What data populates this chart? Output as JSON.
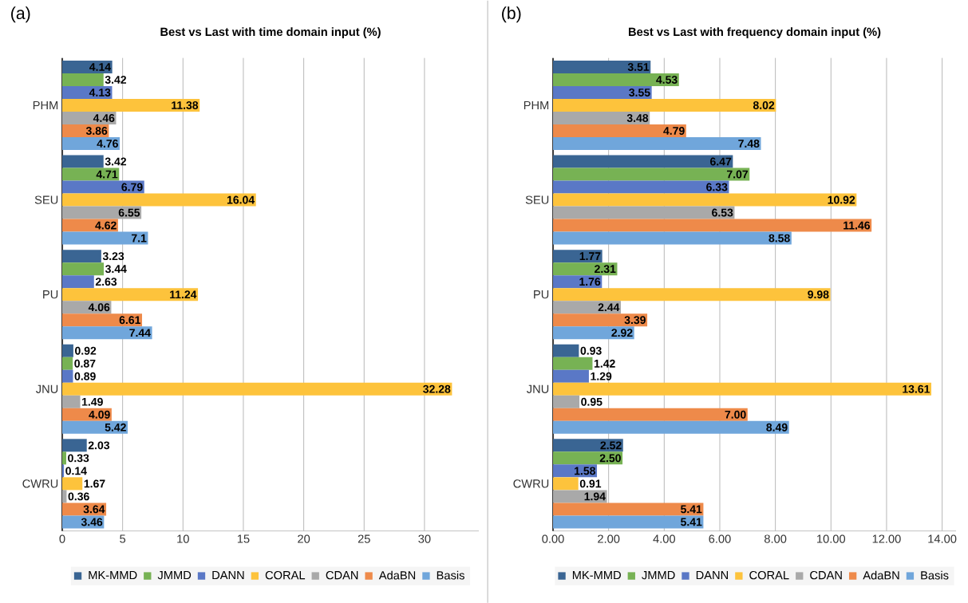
{
  "chart_data": [
    {
      "type": "bar",
      "orientation": "horizontal",
      "title": "Best vs Last with time domain input (%)",
      "annotations": [
        "(a)"
      ],
      "categories": [
        "PHM",
        "SEU",
        "PU",
        "JNU",
        "CWRU"
      ],
      "series": [
        {
          "name": "MK-MMD",
          "color": "#3a6593",
          "values": [
            4.14,
            3.42,
            3.23,
            0.92,
            2.03
          ]
        },
        {
          "name": "JMMD",
          "color": "#77b254",
          "values": [
            3.42,
            4.71,
            3.44,
            0.87,
            0.33
          ]
        },
        {
          "name": "DANN",
          "color": "#5a78c6",
          "values": [
            4.13,
            6.79,
            2.63,
            0.89,
            0.14
          ]
        },
        {
          "name": "CORAL",
          "color": "#fdc33c",
          "values": [
            11.38,
            16.04,
            11.24,
            32.28,
            1.67
          ]
        },
        {
          "name": "CDAN",
          "color": "#a9a9a9",
          "values": [
            4.46,
            6.55,
            4.06,
            1.49,
            0.36
          ]
        },
        {
          "name": "AdaBN",
          "color": "#ee8a4a",
          "values": [
            3.86,
            4.62,
            6.61,
            4.09,
            3.64
          ]
        },
        {
          "name": "Basis",
          "color": "#70a6db",
          "values": [
            4.76,
            7.1,
            7.44,
            5.42,
            3.46
          ]
        }
      ],
      "xlim": [
        0,
        34.5
      ],
      "xticks": [
        0,
        5,
        10,
        15,
        20,
        25,
        30
      ],
      "grid": "x",
      "legend": "bottom",
      "data_labels": true
    },
    {
      "type": "bar",
      "orientation": "horizontal",
      "title": "Best vs Last with frequency domain input (%)",
      "annotations": [
        "(b)"
      ],
      "categories": [
        "PHM",
        "SEU",
        "PU",
        "JNU",
        "CWRU"
      ],
      "series": [
        {
          "name": "MK-MMD",
          "color": "#3a6593",
          "values": [
            3.51,
            6.47,
            1.77,
            0.93,
            2.52
          ],
          "value_labels": [
            "3.51",
            "6.47",
            "1.77",
            "0.93",
            "2.52"
          ]
        },
        {
          "name": "JMMD",
          "color": "#77b254",
          "values": [
            4.53,
            7.07,
            2.31,
            1.42,
            2.5
          ],
          "value_labels": [
            "4.53",
            "7.07",
            "2.31",
            "1.42",
            "2.50"
          ]
        },
        {
          "name": "DANN",
          "color": "#5a78c6",
          "values": [
            3.55,
            6.33,
            1.76,
            1.29,
            1.58
          ],
          "value_labels": [
            "3.55",
            "6.33",
            "1.76",
            "1.29",
            "1.58"
          ]
        },
        {
          "name": "CORAL",
          "color": "#fdc33c",
          "values": [
            8.02,
            10.92,
            9.98,
            13.61,
            0.91
          ],
          "value_labels": [
            "8.02",
            "10.92",
            "9.98",
            "13.61",
            "0.91"
          ]
        },
        {
          "name": "CDAN",
          "color": "#a9a9a9",
          "values": [
            3.48,
            6.53,
            2.44,
            0.95,
            1.94
          ],
          "value_labels": [
            "3.48",
            "6.53",
            "2.44",
            "0.95",
            "1.94"
          ]
        },
        {
          "name": "AdaBN",
          "color": "#ee8a4a",
          "values": [
            4.79,
            11.46,
            3.39,
            7.0,
            5.41
          ],
          "value_labels": [
            "4.79",
            "11.46",
            "3.39",
            "7.00",
            "5.41"
          ]
        },
        {
          "name": "Basis",
          "color": "#70a6db",
          "values": [
            7.48,
            8.58,
            2.92,
            8.49,
            5.41
          ],
          "value_labels": [
            "7.48",
            "8.58",
            "2.92",
            "8.49",
            "5.41"
          ]
        }
      ],
      "xlim": [
        0,
        14.5
      ],
      "xticks": [
        {
          "value": 0,
          "label": "0.00"
        },
        {
          "value": 2,
          "label": "2.00"
        },
        {
          "value": 4,
          "label": "4.00"
        },
        {
          "value": 6,
          "label": "6.00"
        },
        {
          "value": 8,
          "label": "8.00"
        },
        {
          "value": 10,
          "label": "10.00"
        },
        {
          "value": 12,
          "label": "12.00"
        },
        {
          "value": 14,
          "label": "14.00"
        }
      ],
      "grid": "x",
      "legend": "bottom"
    }
  ]
}
